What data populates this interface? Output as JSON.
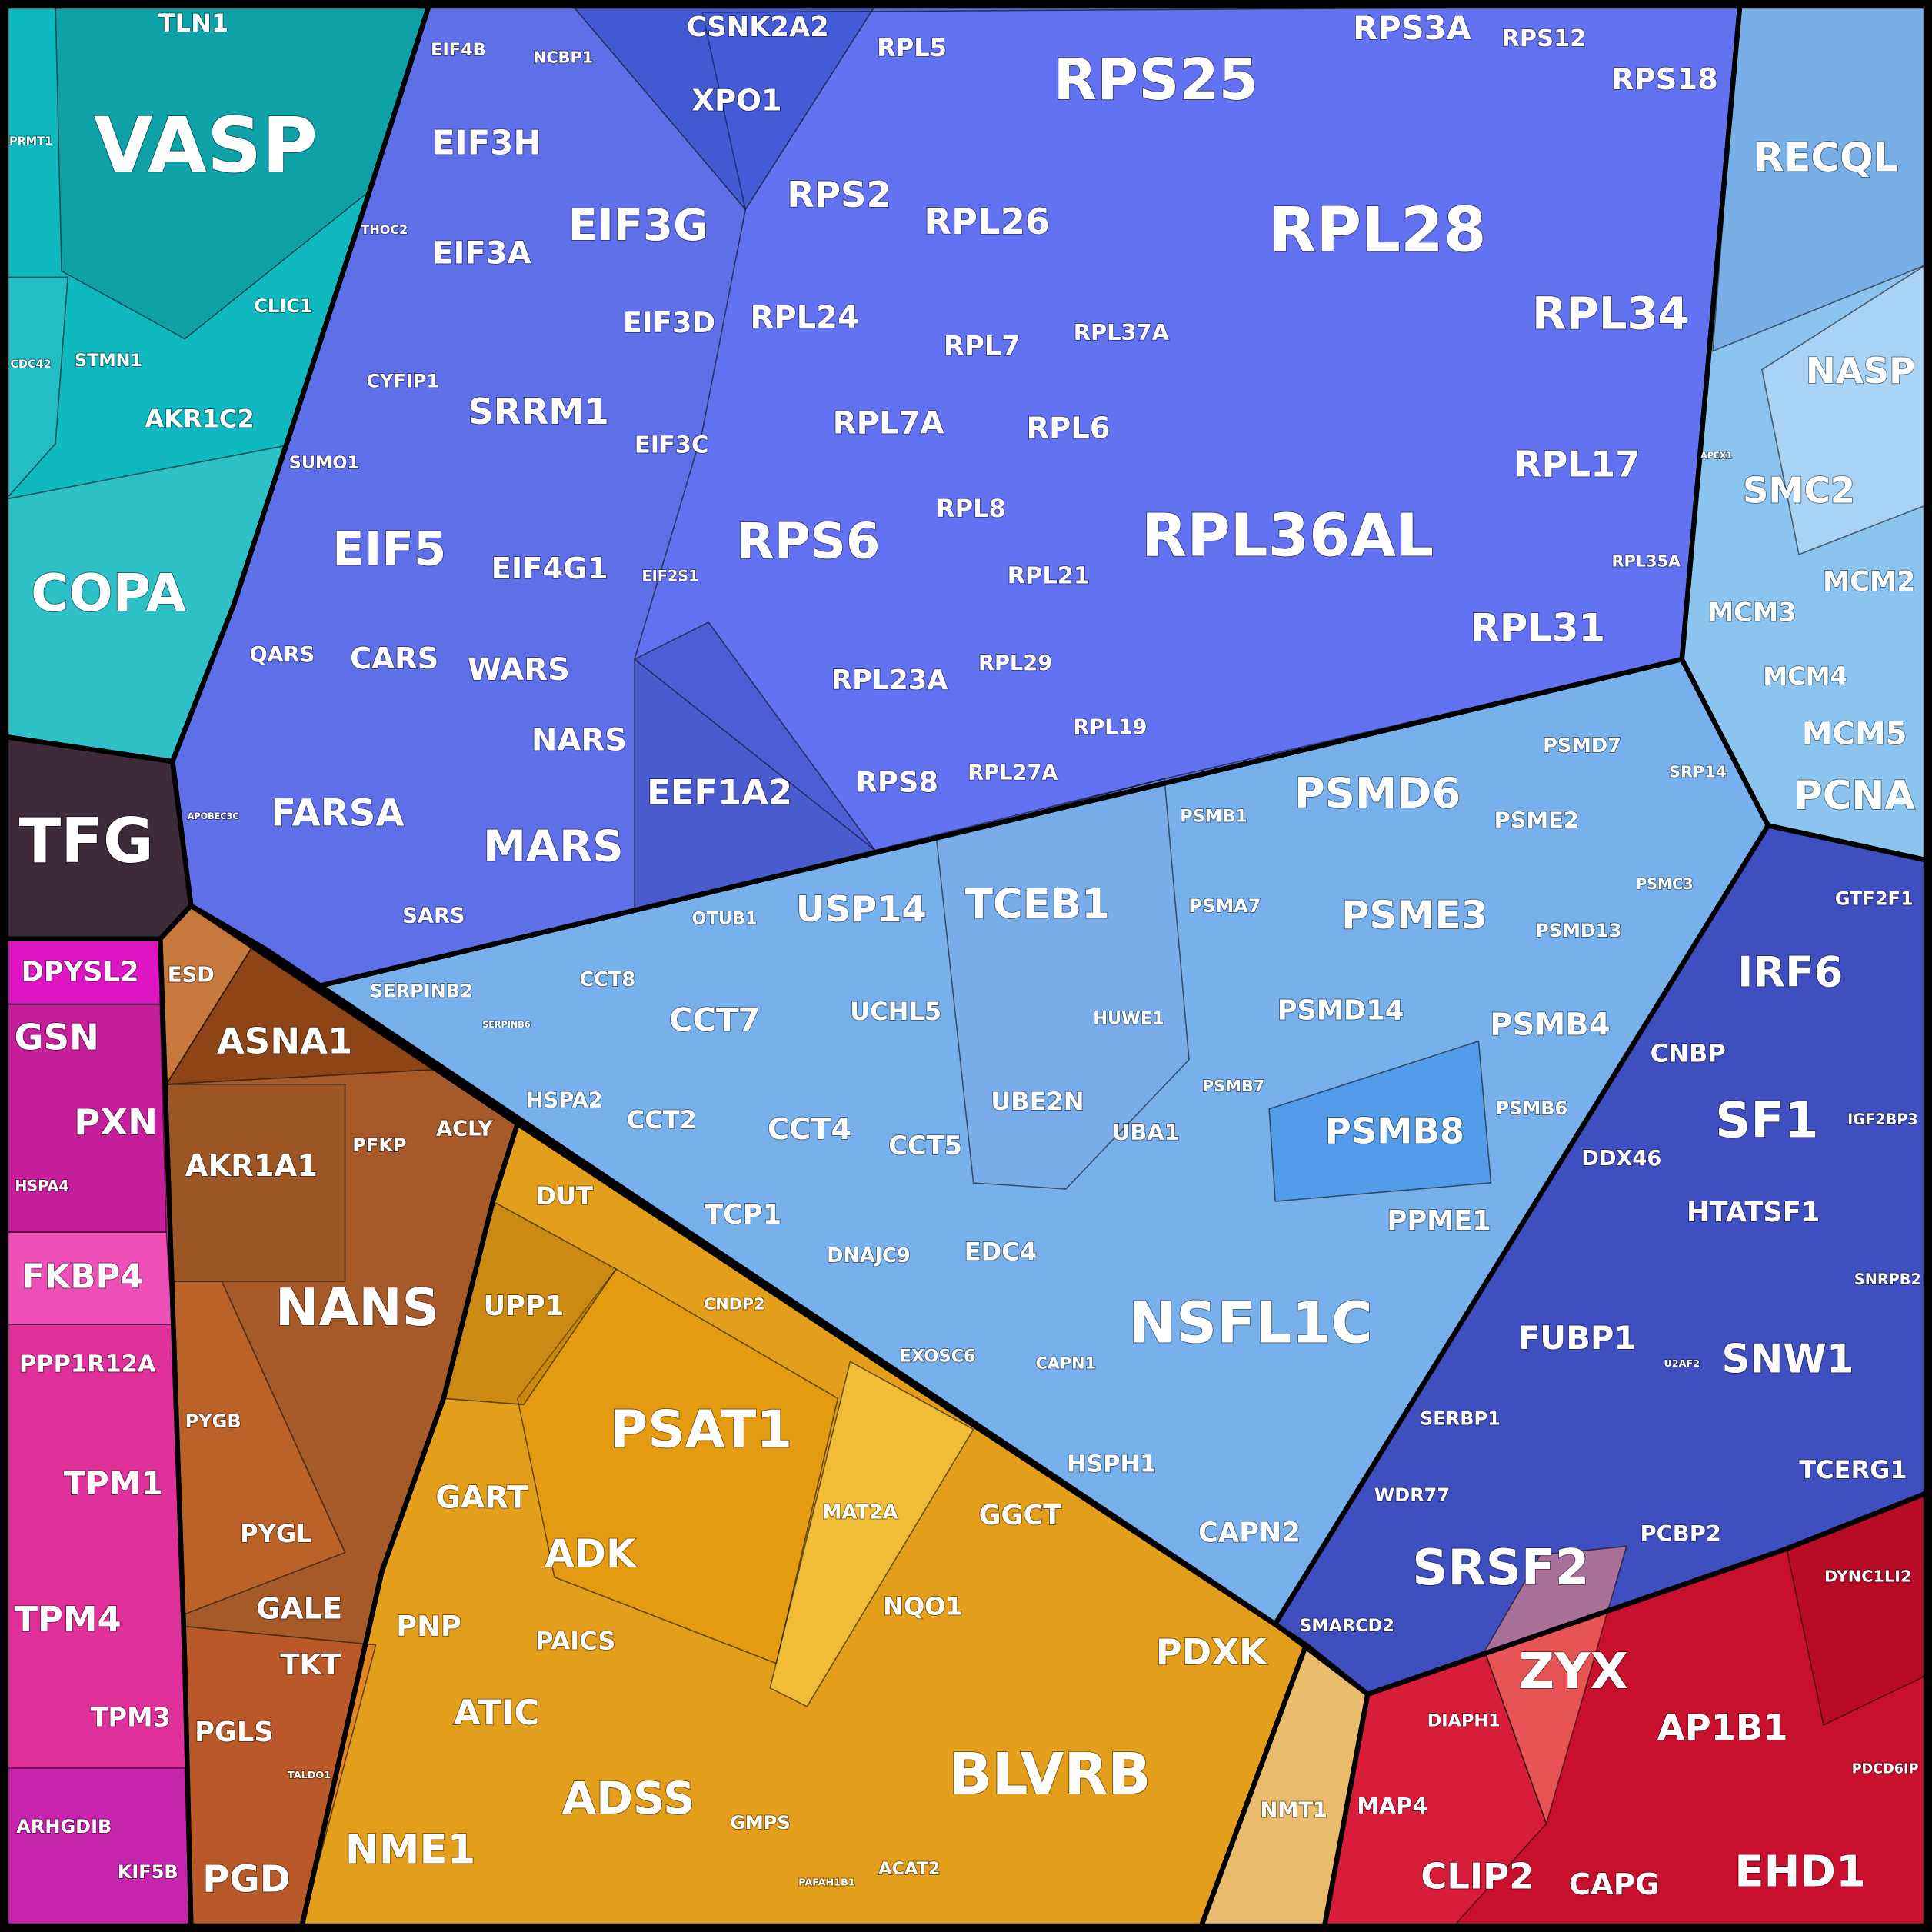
{
  "chart_data": {
    "type": "voronoi-treemap",
    "groups": [
      {
        "color": "#10b8c0",
        "cells": [
          "TLN1",
          "VASP",
          "PRMT1",
          "CDC42",
          "STMN1",
          "CLIC1",
          "AKR1C2",
          "COPA"
        ]
      },
      {
        "color": "#3d2b3a",
        "cells": [
          "TFG"
        ]
      },
      {
        "color": "#5f6fe8",
        "cells": [
          "EIF4B",
          "NCBP1",
          "CSNK2A2",
          "XPO1",
          "RPL5",
          "RPS25",
          "RPS3A",
          "RPS12",
          "RPS18",
          "EIF3H",
          "EIF3G",
          "RPS2",
          "RPL26",
          "RPL28",
          "THOC2",
          "EIF3A",
          "RPL24",
          "EIF3D",
          "RPL7",
          "RPL37A",
          "RPL34",
          "CYFIP1",
          "SRRM1",
          "RPL7A",
          "RPL6",
          "SUMO1",
          "EIF3C",
          "RPL17",
          "RPL8",
          "RPS6",
          "RPL36AL",
          "EIF5",
          "EIF4G1",
          "EIF2S1",
          "RPL21",
          "RPL35A",
          "RPL31",
          "QARS",
          "CARS",
          "WARS",
          "RPL29",
          "RPL23A",
          "NARS",
          "RPL19",
          "FARSA",
          "APOBEC3C",
          "EEF1A2",
          "RPS8",
          "RPL27A",
          "MARS",
          "SARS"
        ]
      },
      {
        "color": "#8cc4f0",
        "cells": [
          "RECQL",
          "NASP",
          "APEX1",
          "SMC2",
          "MCM2",
          "MCM3",
          "MCM4",
          "MCM5",
          "PCNA"
        ]
      },
      {
        "color": "#78b0ec",
        "cells": [
          "PSMD6",
          "PSMD7",
          "SRP14",
          "PSMB1",
          "PSME2",
          "TCEB1",
          "USP14",
          "OTUB1",
          "PSMA7",
          "PSME3",
          "PSMC3",
          "PSMD13",
          "SERPINB2",
          "CCT8",
          "SERPINB6",
          "CCT7",
          "UCHL5",
          "HUWE1",
          "PSMD14",
          "PSMB4",
          "UBE2N",
          "PSMB7",
          "HSPA2",
          "CCT2",
          "CCT4",
          "CCT5",
          "UBA1",
          "PSMB8",
          "PSMB6",
          "TCP1",
          "DNAJC9",
          "EDC4",
          "PPME1",
          "NSFL1C",
          "EXOSC6",
          "CAPN1",
          "HSPH1",
          "CAPN2"
        ]
      },
      {
        "color": "#3f4fc0",
        "cells": [
          "GTF2F1",
          "IRF6",
          "CNBP",
          "SF1",
          "IGF2BP3",
          "DDX46",
          "HTATSF1",
          "SNRPB2",
          "FUBP1",
          "U2AF2",
          "SNW1",
          "SERBP1",
          "TCERG1",
          "WDR77",
          "PCBP2",
          "SRSF2",
          "SMARCD2"
        ]
      },
      {
        "color": "#c8102e",
        "cells": [
          "DYNC1LI2",
          "ZYX",
          "DIAPH1",
          "AP1B1",
          "PDCD6IP",
          "MAP4",
          "CLIP2",
          "CAPG",
          "EHD1"
        ]
      },
      {
        "color": "#e8bc6c",
        "cells": [
          "NMT1"
        ]
      },
      {
        "color": "#e39e1c",
        "cells": [
          "DUT",
          "UPP1",
          "CNDP2",
          "PSAT1",
          "MAT2A",
          "GART",
          "GGCT",
          "ADK",
          "NQO1",
          "PNP",
          "PAICS",
          "PDXK",
          "ATIC",
          "BLVRB",
          "ADSS",
          "GMPS",
          "NME1",
          "ACAT2",
          "PAFAH1B1"
        ]
      },
      {
        "color": "#a65a2a",
        "cells": [
          "ESD",
          "ASNA1",
          "ACLY",
          "PFKP",
          "AKR1A1",
          "NANS",
          "PYGB",
          "PYGL",
          "GALE",
          "TKT",
          "PGLS",
          "TALDO1",
          "PGD"
        ]
      },
      {
        "color": "#e0309a",
        "cells": [
          "DPYSL2",
          "GSN",
          "PXN",
          "HSPA4",
          "FKBP4",
          "PPP1R12A",
          "TPM1",
          "TPM4",
          "TPM3",
          "ARHGDIB",
          "KIF5B"
        ]
      }
    ]
  }
}
